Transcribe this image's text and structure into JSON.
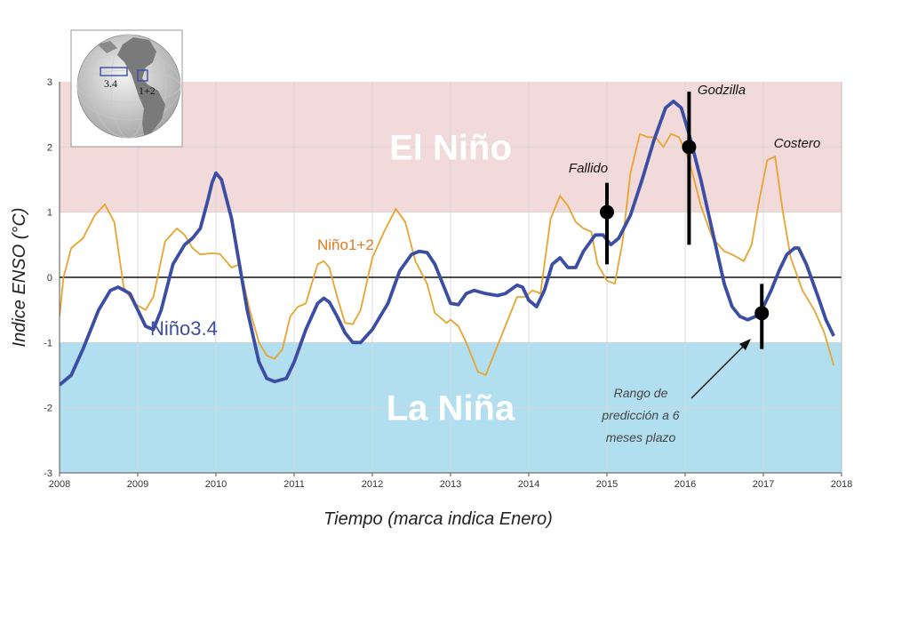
{
  "chart_data": {
    "type": "line",
    "xlabel": "Tiempo (marca indica Enero)",
    "ylabel": "Indice ENSO (°C)",
    "xlim": [
      2008,
      2018
    ],
    "ylim": [
      -3,
      3
    ],
    "x_ticks": [
      "2008",
      "2009",
      "2010",
      "2011",
      "2012",
      "2013",
      "2014",
      "2015",
      "2016",
      "2017",
      "2018"
    ],
    "y_ticks": [
      "3",
      "2",
      "1",
      "0",
      "-1",
      "-2",
      "-3"
    ],
    "regions": [
      {
        "name": "El Niño",
        "ymin": 1,
        "ymax": 3,
        "color": "#f2dada"
      },
      {
        "name": "La Niña",
        "ymin": -3,
        "ymax": -1,
        "color": "#b2dff0"
      }
    ],
    "series": [
      {
        "name": "Niño3.4",
        "color": "#3b4ea3",
        "points": [
          [
            2008.0,
            -1.65
          ],
          [
            2008.15,
            -1.5
          ],
          [
            2008.3,
            -1.1
          ],
          [
            2008.5,
            -0.5
          ],
          [
            2008.65,
            -0.2
          ],
          [
            2008.75,
            -0.15
          ],
          [
            2008.9,
            -0.25
          ],
          [
            2009.0,
            -0.5
          ],
          [
            2009.1,
            -0.75
          ],
          [
            2009.2,
            -0.8
          ],
          [
            2009.3,
            -0.5
          ],
          [
            2009.45,
            0.2
          ],
          [
            2009.6,
            0.5
          ],
          [
            2009.7,
            0.6
          ],
          [
            2009.8,
            0.75
          ],
          [
            2009.9,
            1.2
          ],
          [
            2009.95,
            1.45
          ],
          [
            2010.0,
            1.6
          ],
          [
            2010.07,
            1.5
          ],
          [
            2010.2,
            0.9
          ],
          [
            2010.3,
            0.2
          ],
          [
            2010.4,
            -0.5
          ],
          [
            2010.55,
            -1.3
          ],
          [
            2010.65,
            -1.55
          ],
          [
            2010.75,
            -1.6
          ],
          [
            2010.9,
            -1.55
          ],
          [
            2011.0,
            -1.3
          ],
          [
            2011.15,
            -0.8
          ],
          [
            2011.3,
            -0.4
          ],
          [
            2011.38,
            -0.32
          ],
          [
            2011.45,
            -0.38
          ],
          [
            2011.55,
            -0.6
          ],
          [
            2011.65,
            -0.85
          ],
          [
            2011.75,
            -1.0
          ],
          [
            2011.85,
            -1.0
          ],
          [
            2012.0,
            -0.8
          ],
          [
            2012.2,
            -0.4
          ],
          [
            2012.35,
            0.1
          ],
          [
            2012.5,
            0.35
          ],
          [
            2012.6,
            0.4
          ],
          [
            2012.7,
            0.38
          ],
          [
            2012.8,
            0.2
          ],
          [
            2012.9,
            -0.1
          ],
          [
            2013.0,
            -0.4
          ],
          [
            2013.1,
            -0.42
          ],
          [
            2013.2,
            -0.25
          ],
          [
            2013.3,
            -0.2
          ],
          [
            2013.45,
            -0.25
          ],
          [
            2013.6,
            -0.28
          ],
          [
            2013.7,
            -0.25
          ],
          [
            2013.85,
            -0.12
          ],
          [
            2013.92,
            -0.15
          ],
          [
            2014.0,
            -0.35
          ],
          [
            2014.1,
            -0.45
          ],
          [
            2014.2,
            -0.2
          ],
          [
            2014.3,
            0.2
          ],
          [
            2014.4,
            0.3
          ],
          [
            2014.5,
            0.15
          ],
          [
            2014.6,
            0.15
          ],
          [
            2014.7,
            0.4
          ],
          [
            2014.85,
            0.65
          ],
          [
            2014.95,
            0.65
          ],
          [
            2015.05,
            0.5
          ],
          [
            2015.15,
            0.6
          ],
          [
            2015.3,
            0.95
          ],
          [
            2015.45,
            1.5
          ],
          [
            2015.6,
            2.1
          ],
          [
            2015.75,
            2.6
          ],
          [
            2015.85,
            2.7
          ],
          [
            2015.95,
            2.6
          ],
          [
            2016.05,
            2.2
          ],
          [
            2016.2,
            1.5
          ],
          [
            2016.35,
            0.7
          ],
          [
            2016.5,
            -0.1
          ],
          [
            2016.6,
            -0.45
          ],
          [
            2016.7,
            -0.6
          ],
          [
            2016.8,
            -0.65
          ],
          [
            2016.9,
            -0.6
          ],
          [
            2017.0,
            -0.45
          ],
          [
            2017.1,
            -0.2
          ],
          [
            2017.2,
            0.1
          ],
          [
            2017.3,
            0.35
          ],
          [
            2017.4,
            0.45
          ],
          [
            2017.45,
            0.45
          ],
          [
            2017.55,
            0.2
          ],
          [
            2017.7,
            -0.3
          ],
          [
            2017.8,
            -0.65
          ],
          [
            2017.9,
            -0.9
          ]
        ]
      },
      {
        "name": "Niño1+2",
        "color": "#e8a430",
        "points": [
          [
            2008.0,
            -0.6
          ],
          [
            2008.05,
            0.0
          ],
          [
            2008.15,
            0.45
          ],
          [
            2008.3,
            0.6
          ],
          [
            2008.45,
            0.95
          ],
          [
            2008.58,
            1.12
          ],
          [
            2008.7,
            0.85
          ],
          [
            2008.82,
            -0.15
          ],
          [
            2008.95,
            -0.4
          ],
          [
            2009.1,
            -0.5
          ],
          [
            2009.2,
            -0.3
          ],
          [
            2009.35,
            0.55
          ],
          [
            2009.5,
            0.75
          ],
          [
            2009.6,
            0.65
          ],
          [
            2009.7,
            0.45
          ],
          [
            2009.8,
            0.35
          ],
          [
            2009.95,
            0.37
          ],
          [
            2010.05,
            0.36
          ],
          [
            2010.2,
            0.15
          ],
          [
            2010.3,
            0.2
          ],
          [
            2010.42,
            -0.45
          ],
          [
            2010.55,
            -1.0
          ],
          [
            2010.65,
            -1.2
          ],
          [
            2010.75,
            -1.25
          ],
          [
            2010.85,
            -1.1
          ],
          [
            2010.95,
            -0.6
          ],
          [
            2011.05,
            -0.45
          ],
          [
            2011.15,
            -0.4
          ],
          [
            2011.3,
            0.2
          ],
          [
            2011.38,
            0.25
          ],
          [
            2011.45,
            0.15
          ],
          [
            2011.55,
            -0.3
          ],
          [
            2011.65,
            -0.7
          ],
          [
            2011.75,
            -0.72
          ],
          [
            2011.85,
            -0.5
          ],
          [
            2012.0,
            0.3
          ],
          [
            2012.15,
            0.7
          ],
          [
            2012.3,
            1.05
          ],
          [
            2012.42,
            0.85
          ],
          [
            2012.55,
            0.25
          ],
          [
            2012.7,
            -0.1
          ],
          [
            2012.8,
            -0.55
          ],
          [
            2012.95,
            -0.7
          ],
          [
            2013.0,
            -0.65
          ],
          [
            2013.1,
            -0.75
          ],
          [
            2013.2,
            -1.0
          ],
          [
            2013.35,
            -1.45
          ],
          [
            2013.45,
            -1.5
          ],
          [
            2013.55,
            -1.2
          ],
          [
            2013.65,
            -0.9
          ],
          [
            2013.75,
            -0.6
          ],
          [
            2013.85,
            -0.3
          ],
          [
            2013.95,
            -0.3
          ],
          [
            2014.05,
            -0.2
          ],
          [
            2014.15,
            -0.25
          ],
          [
            2014.28,
            0.9
          ],
          [
            2014.4,
            1.25
          ],
          [
            2014.5,
            1.1
          ],
          [
            2014.6,
            0.85
          ],
          [
            2014.7,
            0.75
          ],
          [
            2014.8,
            0.7
          ],
          [
            2014.88,
            0.2
          ],
          [
            2015.0,
            -0.05
          ],
          [
            2015.1,
            -0.1
          ],
          [
            2015.2,
            0.55
          ],
          [
            2015.3,
            1.6
          ],
          [
            2015.42,
            2.2
          ],
          [
            2015.52,
            2.15
          ],
          [
            2015.62,
            2.15
          ],
          [
            2015.72,
            2.0
          ],
          [
            2015.82,
            2.2
          ],
          [
            2015.92,
            2.15
          ],
          [
            2016.05,
            1.8
          ],
          [
            2016.2,
            1.1
          ],
          [
            2016.35,
            0.6
          ],
          [
            2016.5,
            0.4
          ],
          [
            2016.6,
            0.35
          ],
          [
            2016.75,
            0.25
          ],
          [
            2016.85,
            0.5
          ],
          [
            2016.95,
            1.2
          ],
          [
            2017.05,
            1.8
          ],
          [
            2017.15,
            1.85
          ],
          [
            2017.25,
            1.0
          ],
          [
            2017.35,
            0.3
          ],
          [
            2017.5,
            -0.2
          ],
          [
            2017.65,
            -0.5
          ],
          [
            2017.78,
            -0.85
          ],
          [
            2017.9,
            -1.35
          ]
        ]
      }
    ],
    "predictions": [
      {
        "label": "Fallido",
        "x": 2015.0,
        "y": 1.0,
        "low": 0.2,
        "high": 1.45
      },
      {
        "label": "Godzilla",
        "x": 2016.05,
        "y": 2.0,
        "low": 0.5,
        "high": 2.85
      },
      {
        "label": "",
        "x": 2016.98,
        "y": -0.55,
        "low": -1.1,
        "high": -0.1
      }
    ],
    "annotations": {
      "costero": "Costero",
      "prediction_note": [
        "Rango de",
        "predicción a 6",
        "meses plazo"
      ]
    },
    "inset_map": {
      "labels": [
        "3.4",
        "1+2"
      ]
    }
  }
}
